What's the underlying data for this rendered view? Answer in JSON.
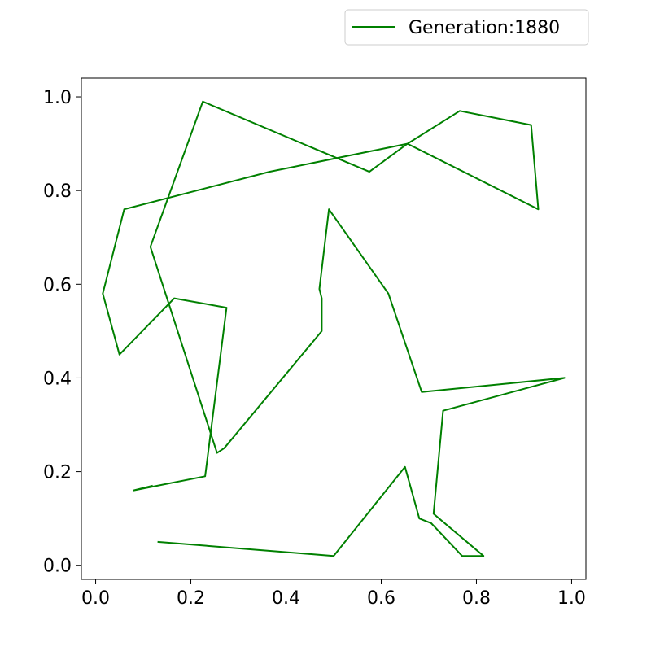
{
  "chart_data": {
    "type": "line",
    "series": [
      {
        "name": "Generation:1880",
        "color": "#008000",
        "x": [
          0.13,
          0.5,
          0.65,
          0.68,
          0.705,
          0.77,
          0.815,
          0.71,
          0.73,
          0.985,
          0.685,
          0.615,
          0.49,
          0.47,
          0.475,
          0.475,
          0.27,
          0.255,
          0.115,
          0.225,
          0.575,
          0.655,
          0.765,
          0.915,
          0.93,
          0.655,
          0.365,
          0.06,
          0.015,
          0.05,
          0.165,
          0.275,
          0.23,
          0.08,
          0.12
        ],
        "y": [
          0.05,
          0.02,
          0.21,
          0.1,
          0.09,
          0.02,
          0.02,
          0.11,
          0.33,
          0.4,
          0.37,
          0.58,
          0.76,
          0.59,
          0.57,
          0.5,
          0.25,
          0.24,
          0.68,
          0.99,
          0.84,
          0.9,
          0.97,
          0.94,
          0.76,
          0.9,
          0.84,
          0.76,
          0.58,
          0.45,
          0.57,
          0.55,
          0.19,
          0.16,
          0.17
        ]
      }
    ],
    "xlim": [
      -0.03,
      1.03
    ],
    "ylim": [
      -0.03,
      1.04
    ],
    "xticks": [
      0.0,
      0.2,
      0.4,
      0.6,
      0.8,
      1.0
    ],
    "yticks": [
      0.0,
      0.2,
      0.4,
      0.6,
      0.8,
      1.0
    ],
    "xtick_labels": [
      "0.0",
      "0.2",
      "0.4",
      "0.6",
      "0.8",
      "1.0"
    ],
    "ytick_labels": [
      "0.0",
      "0.2",
      "0.4",
      "0.6",
      "0.8",
      "1.0"
    ],
    "title": "",
    "xlabel": "",
    "ylabel": "",
    "grid": false,
    "legend": {
      "position": "above-right",
      "entries": [
        "Generation:1880"
      ]
    }
  }
}
